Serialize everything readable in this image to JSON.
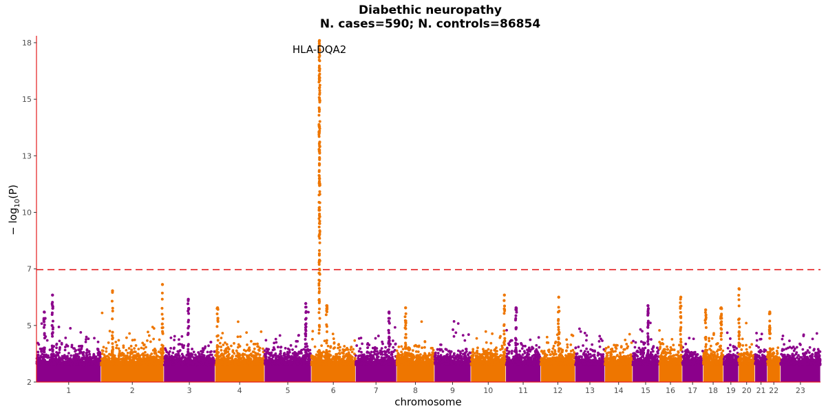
{
  "chart_data": {
    "type": "scatter",
    "subtype": "manhattan",
    "title": "Diabethic neuropathy",
    "subtitle": "N. cases=590; N. controls=86854",
    "xlabel": "chromosome",
    "ylabel_prefix": "− log",
    "ylabel_sub": "10",
    "ylabel_suffix": "(P)",
    "ylim": [
      2,
      18.3
    ],
    "y_ticks": [
      {
        "value": 2,
        "label": "2"
      },
      {
        "value": 4.667,
        "label": "5"
      },
      {
        "value": 7.333,
        "label": "7"
      },
      {
        "value": 10,
        "label": "10"
      },
      {
        "value": 12.667,
        "label": "13"
      },
      {
        "value": 15.333,
        "label": "15"
      },
      {
        "value": 18,
        "label": "18"
      }
    ],
    "significance_threshold": 7.3,
    "colors": {
      "odd": "#8B008B",
      "even": "#EE7600",
      "threshold": "#E41A1C",
      "axis": "#E41A1C"
    },
    "chromosomes": [
      {
        "label": "1",
        "length_mb": 249
      },
      {
        "label": "2",
        "length_mb": 243
      },
      {
        "label": "3",
        "length_mb": 198
      },
      {
        "label": "4",
        "length_mb": 191
      },
      {
        "label": "5",
        "length_mb": 181
      },
      {
        "label": "6",
        "length_mb": 171
      },
      {
        "label": "7",
        "length_mb": 159
      },
      {
        "label": "8",
        "length_mb": 146
      },
      {
        "label": "9",
        "length_mb": 141
      },
      {
        "label": "10",
        "length_mb": 135
      },
      {
        "label": "11",
        "length_mb": 135
      },
      {
        "label": "12",
        "length_mb": 133
      },
      {
        "label": "13",
        "length_mb": 115
      },
      {
        "label": "14",
        "length_mb": 107
      },
      {
        "label": "15",
        "length_mb": 102
      },
      {
        "label": "16",
        "length_mb": 90
      },
      {
        "label": "17",
        "length_mb": 81
      },
      {
        "label": "18",
        "length_mb": 78
      },
      {
        "label": "19",
        "length_mb": 59
      },
      {
        "label": "20",
        "length_mb": 63
      },
      {
        "label": "21",
        "length_mb": 48
      },
      {
        "label": "22",
        "length_mb": 51
      },
      {
        "label": "23",
        "length_mb": 155
      }
    ],
    "peaks": [
      {
        "chr": "1",
        "pos_mb": 62,
        "max": 6.1
      },
      {
        "chr": "1",
        "pos_mb": 30,
        "max": 5.3
      },
      {
        "chr": "2",
        "pos_mb": 45,
        "max": 6.3
      },
      {
        "chr": "2",
        "pos_mb": 238,
        "max": 6.6
      },
      {
        "chr": "3",
        "pos_mb": 95,
        "max": 5.9
      },
      {
        "chr": "4",
        "pos_mb": 10,
        "max": 5.5
      },
      {
        "chr": "5",
        "pos_mb": 160,
        "max": 5.7
      },
      {
        "chr": "6",
        "pos_mb": 32,
        "max": 18.1,
        "annotation": "HLA-DQA2"
      },
      {
        "chr": "6",
        "pos_mb": 60,
        "max": 5.6
      },
      {
        "chr": "7",
        "pos_mb": 130,
        "max": 5.3
      },
      {
        "chr": "8",
        "pos_mb": 35,
        "max": 5.5
      },
      {
        "chr": "10",
        "pos_mb": 130,
        "max": 6.1
      },
      {
        "chr": "11",
        "pos_mb": 40,
        "max": 5.5
      },
      {
        "chr": "12",
        "pos_mb": 70,
        "max": 6.0
      },
      {
        "chr": "15",
        "pos_mb": 60,
        "max": 5.6
      },
      {
        "chr": "16",
        "pos_mb": 85,
        "max": 6.0
      },
      {
        "chr": "18",
        "pos_mb": 10,
        "max": 5.4
      },
      {
        "chr": "18",
        "pos_mb": 70,
        "max": 5.5
      },
      {
        "chr": "20",
        "pos_mb": 2,
        "max": 6.4
      },
      {
        "chr": "22",
        "pos_mb": 10,
        "max": 5.3
      }
    ]
  }
}
